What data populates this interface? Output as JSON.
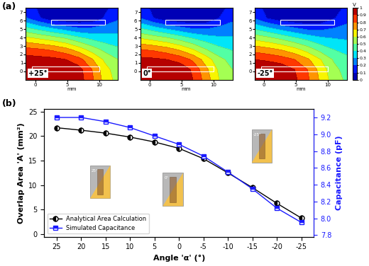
{
  "chart_data": [
    {
      "type": "contour",
      "panel_label": "(a)",
      "label": "+25°",
      "xlabel": "mm",
      "x": [
        -1.5,
        0.6,
        2.7,
        4.8,
        6.8,
        8.9,
        10.9,
        13
      ],
      "y": [
        -1,
        0.2,
        1.4,
        2.6,
        3.9,
        5.1,
        6.3,
        7.5
      ],
      "xlim": [
        -1.5,
        13
      ],
      "ylim": [
        -1,
        7.5
      ],
      "xticks": [
        0,
        5,
        10
      ],
      "yticks": [
        0,
        1,
        2,
        3,
        4,
        5,
        6,
        7
      ],
      "cells": [
        [
          1.0,
          1.0,
          1.0,
          1.0,
          0.95,
          0.82,
          0.66,
          0.56
        ],
        [
          1.0,
          1.0,
          1.0,
          1.0,
          0.94,
          0.8,
          0.64,
          0.54
        ],
        [
          0.95,
          0.94,
          0.93,
          0.9,
          0.84,
          0.71,
          0.58,
          0.5
        ],
        [
          0.83,
          0.81,
          0.78,
          0.73,
          0.65,
          0.55,
          0.47,
          0.42
        ],
        [
          0.63,
          0.59,
          0.55,
          0.5,
          0.43,
          0.38,
          0.35,
          0.33
        ],
        [
          0.42,
          0.36,
          0.3,
          0.25,
          0.21,
          0.21,
          0.24,
          0.27
        ],
        [
          0.21,
          0.11,
          0.03,
          0.01,
          0.01,
          0.02,
          0.11,
          0.18
        ],
        [
          0.17,
          0.08,
          0.02,
          0.0,
          0.0,
          0.02,
          0.08,
          0.14
        ]
      ]
    },
    {
      "type": "contour",
      "label": "0°",
      "xlabel": "mm",
      "x": [
        -1.5,
        0.6,
        2.7,
        4.8,
        6.8,
        8.9,
        10.9,
        13
      ],
      "y": [
        -1,
        0.2,
        1.4,
        2.6,
        3.9,
        5.1,
        6.3,
        7.5
      ],
      "xlim": [
        -1.5,
        13
      ],
      "ylim": [
        -1,
        7.5
      ],
      "xticks": [
        0,
        5,
        10
      ],
      "yticks": [
        0,
        1,
        2,
        3,
        4,
        5,
        6,
        7
      ],
      "cells": [
        [
          1.0,
          1.0,
          1.0,
          0.98,
          0.9,
          0.75,
          0.6,
          0.52
        ],
        [
          1.0,
          1.0,
          1.0,
          0.97,
          0.88,
          0.72,
          0.58,
          0.5
        ],
        [
          0.93,
          0.92,
          0.9,
          0.86,
          0.78,
          0.65,
          0.53,
          0.46
        ],
        [
          0.8,
          0.78,
          0.74,
          0.68,
          0.6,
          0.5,
          0.43,
          0.39
        ],
        [
          0.6,
          0.56,
          0.52,
          0.46,
          0.4,
          0.35,
          0.32,
          0.31
        ],
        [
          0.4,
          0.34,
          0.28,
          0.23,
          0.19,
          0.19,
          0.22,
          0.25
        ],
        [
          0.2,
          0.1,
          0.03,
          0.01,
          0.01,
          0.02,
          0.1,
          0.17
        ],
        [
          0.16,
          0.07,
          0.02,
          0.0,
          0.0,
          0.02,
          0.07,
          0.13
        ]
      ]
    },
    {
      "type": "contour",
      "label": "-25°",
      "xlabel": "mm",
      "x": [
        -1.5,
        0.6,
        2.7,
        4.8,
        6.8,
        8.9,
        10.9,
        13
      ],
      "y": [
        -1,
        0.2,
        1.4,
        2.6,
        3.9,
        5.1,
        6.3,
        7.5
      ],
      "xlim": [
        -1.5,
        13
      ],
      "ylim": [
        -1,
        7.5
      ],
      "xticks": [
        0,
        5,
        10
      ],
      "yticks": [
        0,
        1,
        2,
        3,
        4,
        5,
        6,
        7
      ],
      "cells": [
        [
          1.0,
          1.0,
          0.98,
          0.92,
          0.82,
          0.68,
          0.55,
          0.48
        ],
        [
          1.0,
          1.0,
          0.97,
          0.9,
          0.8,
          0.66,
          0.53,
          0.46
        ],
        [
          0.9,
          0.88,
          0.85,
          0.8,
          0.72,
          0.6,
          0.49,
          0.43
        ],
        [
          0.76,
          0.73,
          0.69,
          0.63,
          0.55,
          0.46,
          0.4,
          0.36
        ],
        [
          0.57,
          0.53,
          0.48,
          0.42,
          0.37,
          0.32,
          0.3,
          0.29
        ],
        [
          0.38,
          0.32,
          0.26,
          0.21,
          0.17,
          0.17,
          0.2,
          0.23
        ],
        [
          0.19,
          0.09,
          0.03,
          0.01,
          0.01,
          0.02,
          0.09,
          0.16
        ],
        [
          0.15,
          0.06,
          0.02,
          0.0,
          0.0,
          0.02,
          0.06,
          0.12
        ]
      ],
      "colorbar": {
        "label": "V",
        "range": [
          0,
          1
        ],
        "ticks": [
          0,
          0.1,
          0.2,
          0.3,
          0.4,
          0.5,
          0.6,
          0.7,
          0.8,
          0.9,
          1
        ]
      }
    },
    {
      "type": "line",
      "panel_label": "(b)",
      "xlabel": "Angle 'α' (°)",
      "ylabel": "Overlap Area 'A' (mm²)",
      "y2label": "Capacitance (pF)",
      "x": [
        25,
        20,
        15,
        10,
        5,
        0,
        -5,
        -10,
        -15,
        -20,
        -25
      ],
      "xlim": [
        27.5,
        -27.5
      ],
      "xticks": [
        25,
        20,
        15,
        10,
        5,
        0,
        -5,
        -10,
        -15,
        -20,
        -25
      ],
      "ylim": [
        -0.5,
        25.5
      ],
      "yticks": [
        0,
        5,
        10,
        15,
        20,
        25
      ],
      "y2lim": [
        7.78,
        9.3
      ],
      "y2ticks": [
        7.8,
        8.0,
        8.2,
        8.4,
        8.6,
        8.8,
        9.0,
        9.2
      ],
      "legend": "lower left",
      "annotations": [
        "25°",
        "0°",
        "-25°"
      ],
      "series": [
        {
          "name": "Analytical Area Calculation",
          "color": "#000000",
          "marker": "o",
          "line_style": "solid",
          "values": [
            21.7,
            21.2,
            20.6,
            19.8,
            18.8,
            17.5,
            15.4,
            12.5,
            9.5,
            6.3,
            3.3
          ]
        },
        {
          "name": "Simulated Capacitance",
          "color": "#1a1aff",
          "marker": "s",
          "line_style": "solid",
          "axis": "y2",
          "values": [
            9.2,
            9.2,
            9.15,
            9.08,
            8.98,
            8.88,
            8.74,
            8.55,
            8.35,
            8.12,
            7.95
          ]
        }
      ]
    }
  ]
}
